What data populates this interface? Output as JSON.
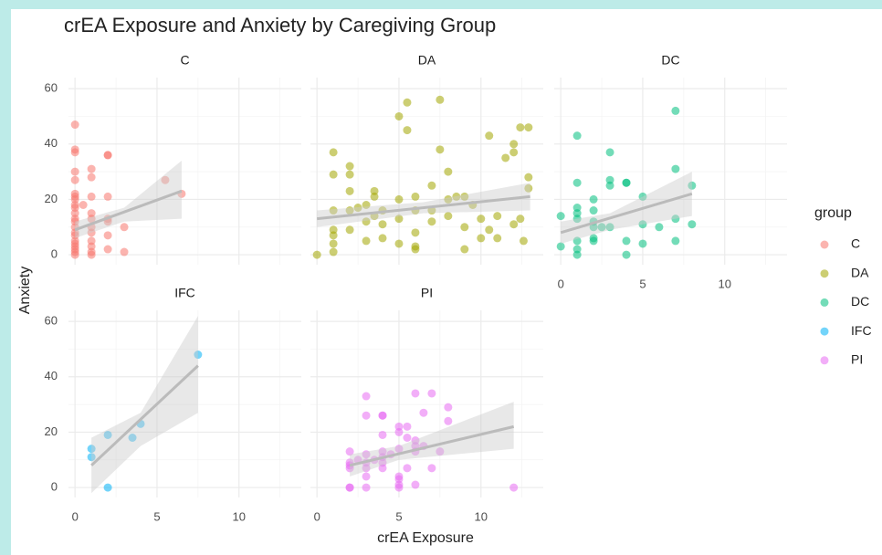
{
  "title": "crEA Exposure and Anxiety by Caregiving Group",
  "x_label": "crEA Exposure",
  "y_label": "Anxiety",
  "legend": {
    "title": "group"
  },
  "chart_data": [
    {
      "type": "scatter",
      "name": "C",
      "color": "#F8766D",
      "x": [
        0,
        0,
        0,
        0,
        0,
        0,
        0,
        0,
        0,
        0,
        0,
        0,
        0,
        0,
        0,
        0,
        0,
        0,
        0,
        0,
        0,
        0,
        0.5,
        1,
        1,
        1,
        1,
        1,
        1,
        1,
        1,
        1,
        1,
        1,
        2,
        2,
        2,
        2,
        2,
        2,
        2,
        3,
        3,
        5.5,
        6.5
      ],
      "values": [
        47,
        38,
        37,
        30,
        27,
        22,
        21,
        20,
        18,
        17,
        15,
        13,
        12,
        10,
        8,
        7,
        5,
        4,
        3,
        2,
        1,
        0,
        18,
        31,
        28,
        21,
        15,
        13,
        10,
        8,
        5,
        3,
        1,
        0,
        36,
        36,
        21,
        13,
        12,
        7,
        2,
        10,
        1,
        27,
        22
      ],
      "trend": {
        "x": [
          0,
          6.5
        ],
        "y": [
          9,
          23
        ]
      },
      "band": {
        "x": [
          0,
          3,
          6.5
        ],
        "lower": [
          6,
          12,
          13
        ],
        "upper": [
          12,
          17,
          34
        ]
      },
      "xlim": [
        -0.4,
        13.8
      ],
      "ylim": [
        -3.6,
        64
      ],
      "xticks": [
        0,
        5,
        10
      ],
      "yticks": [
        0,
        20,
        40,
        60
      ],
      "xminor": [
        2.5,
        7.5,
        12.5
      ],
      "yminor": [
        10,
        30,
        50
      ],
      "grid": true
    },
    {
      "type": "scatter",
      "name": "DA",
      "color": "#A3A500",
      "x": [
        0,
        1,
        1,
        1,
        1,
        1,
        1,
        1,
        2,
        2,
        2,
        2,
        2,
        2.5,
        3,
        3,
        3,
        3.5,
        3.5,
        3.5,
        4,
        4,
        4,
        5,
        5,
        5,
        5,
        5.5,
        5.5,
        6,
        6,
        6,
        6,
        6,
        7,
        7,
        7,
        7.5,
        7.5,
        8,
        8,
        8,
        8.5,
        9,
        9,
        9,
        9.5,
        10,
        10,
        10.5,
        10.5,
        11,
        11,
        11.5,
        12,
        12,
        12,
        12.4,
        12.4,
        12.9,
        12.9,
        12.9,
        12.6
      ],
      "values": [
        0,
        37,
        29,
        16,
        9,
        7,
        4,
        1,
        32,
        29,
        23,
        16,
        9,
        17,
        18,
        12,
        5,
        23,
        21,
        14,
        16,
        11,
        6,
        50,
        20,
        13,
        4,
        55,
        45,
        21,
        16,
        8,
        3,
        2,
        25,
        12,
        16,
        38,
        56,
        30,
        20,
        14,
        21,
        21,
        10,
        2,
        18,
        13,
        6,
        43,
        9,
        14,
        6,
        35,
        40,
        37,
        11,
        46,
        13,
        46,
        28,
        24,
        5
      ],
      "trend": {
        "x": [
          0,
          13
        ],
        "y": [
          13,
          21
        ]
      },
      "band": {
        "x": [
          0,
          6.5,
          13
        ],
        "lower": [
          10,
          15,
          16
        ],
        "upper": [
          16,
          19,
          26
        ]
      },
      "xlim": [
        -0.4,
        13.8
      ],
      "ylim": [
        -3.6,
        64
      ],
      "xticks": [
        0,
        5,
        10
      ],
      "yticks": [
        0,
        20,
        40,
        60
      ],
      "xminor": [
        2.5,
        7.5,
        12.5
      ],
      "yminor": [
        10,
        30,
        50
      ],
      "grid": true
    },
    {
      "type": "scatter",
      "name": "DC",
      "color": "#00BF7D",
      "x": [
        0,
        0,
        1,
        1,
        1,
        1,
        1,
        1,
        1,
        1,
        2,
        2,
        2,
        2,
        2,
        2,
        2.5,
        3,
        3,
        3,
        3,
        4,
        4,
        4,
        4,
        5,
        5,
        5,
        6,
        7,
        7,
        7,
        7,
        8,
        8
      ],
      "values": [
        14,
        3,
        43,
        26,
        17,
        15,
        13,
        5,
        2,
        0,
        20,
        16,
        12,
        10,
        6,
        5,
        10,
        37,
        27,
        25,
        10,
        26,
        26,
        5,
        0,
        21,
        11,
        4,
        10,
        52,
        31,
        13,
        5,
        25,
        11
      ],
      "trend": {
        "x": [
          0,
          8
        ],
        "y": [
          8,
          22
        ]
      },
      "band": {
        "x": [
          0,
          3,
          8
        ],
        "lower": [
          4,
          9,
          14
        ],
        "upper": [
          12,
          15,
          30
        ]
      },
      "xlim": [
        -0.4,
        13.8
      ],
      "ylim": [
        -3.6,
        64
      ],
      "xticks": [
        0,
        5,
        10
      ],
      "yticks": [
        0,
        20,
        40,
        60
      ],
      "xminor": [
        2.5,
        7.5,
        12.5
      ],
      "yminor": [
        10,
        30,
        50
      ],
      "grid": true
    },
    {
      "type": "scatter",
      "name": "IFC",
      "color": "#00B0F6",
      "x": [
        1,
        1,
        2,
        2,
        3.5,
        4,
        7.5
      ],
      "values": [
        14,
        11,
        19,
        0,
        18,
        23,
        48
      ],
      "trend": {
        "x": [
          1,
          7.5
        ],
        "y": [
          8,
          44
        ]
      },
      "band": {
        "x": [
          1,
          4,
          7.5
        ],
        "lower": [
          -2,
          15,
          27
        ],
        "upper": [
          18,
          27,
          62
        ]
      },
      "xlim": [
        -0.4,
        13.8
      ],
      "ylim": [
        -3.6,
        64
      ],
      "xticks": [
        0,
        5,
        10
      ],
      "yticks": [
        0,
        20,
        40,
        60
      ],
      "xminor": [
        2.5,
        7.5,
        12.5
      ],
      "yminor": [
        10,
        30,
        50
      ],
      "grid": true
    },
    {
      "type": "scatter",
      "name": "PI",
      "color": "#E76BF3",
      "x": [
        2,
        2,
        2,
        2,
        2,
        2,
        2.5,
        3,
        3,
        3,
        3,
        3,
        3,
        3,
        3.5,
        4,
        4,
        4,
        4,
        4,
        4,
        4,
        4.5,
        5,
        5,
        5,
        5,
        5,
        5,
        5,
        5.5,
        5.5,
        5.5,
        6,
        6,
        6,
        6,
        6,
        6.5,
        6.5,
        7,
        7,
        7.5,
        8,
        8,
        12
      ],
      "values": [
        13,
        9,
        8,
        7,
        0,
        0,
        10,
        33,
        26,
        12,
        9,
        7,
        4,
        0,
        10,
        26,
        26,
        19,
        13,
        11,
        9,
        7,
        12,
        22,
        20,
        14,
        4,
        3,
        1,
        0,
        22,
        18,
        7,
        34,
        17,
        15,
        13,
        1,
        27,
        15,
        34,
        7,
        13,
        29,
        24,
        0
      ],
      "trend": {
        "x": [
          2,
          12
        ],
        "y": [
          8,
          22
        ]
      },
      "band": {
        "x": [
          2,
          5,
          12
        ],
        "lower": [
          4,
          10,
          14
        ],
        "upper": [
          12,
          15,
          31
        ]
      },
      "xlim": [
        -0.4,
        13.8
      ],
      "ylim": [
        -3.6,
        64
      ],
      "xticks": [
        0,
        5,
        10
      ],
      "yticks": [
        0,
        20,
        40,
        60
      ],
      "xminor": [
        2.5,
        7.5,
        12.5
      ],
      "yminor": [
        10,
        30,
        50
      ],
      "grid": true
    }
  ]
}
